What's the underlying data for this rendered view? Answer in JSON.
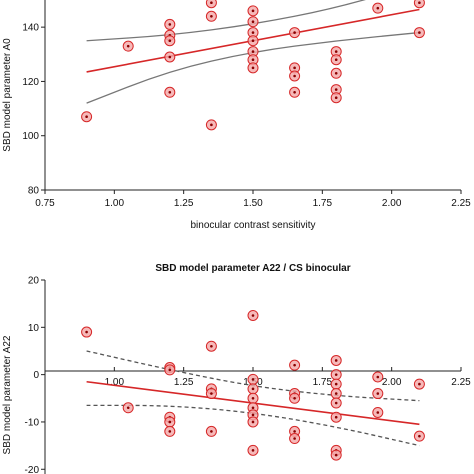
{
  "chart_data": [
    {
      "type": "scatter",
      "title": "",
      "xlabel": "binocular contrast sensitivity",
      "ylabel": "SBD model parameter A0",
      "xlim": [
        0.75,
        2.25
      ],
      "ylim": [
        80,
        150
      ],
      "xticks": [
        "0.75",
        "1.00",
        "1.25",
        "1.50",
        "1.75",
        "2.00",
        "2.25"
      ],
      "yticks": [
        "80",
        "100",
        "120",
        "140"
      ],
      "points": [
        {
          "x": 0.9,
          "y": 107
        },
        {
          "x": 1.05,
          "y": 133
        },
        {
          "x": 1.2,
          "y": 141
        },
        {
          "x": 1.2,
          "y": 137
        },
        {
          "x": 1.2,
          "y": 135
        },
        {
          "x": 1.2,
          "y": 129
        },
        {
          "x": 1.2,
          "y": 116
        },
        {
          "x": 1.35,
          "y": 149
        },
        {
          "x": 1.35,
          "y": 144
        },
        {
          "x": 1.35,
          "y": 104
        },
        {
          "x": 1.5,
          "y": 146
        },
        {
          "x": 1.5,
          "y": 142
        },
        {
          "x": 1.5,
          "y": 138
        },
        {
          "x": 1.5,
          "y": 135
        },
        {
          "x": 1.5,
          "y": 131
        },
        {
          "x": 1.5,
          "y": 128
        },
        {
          "x": 1.5,
          "y": 125
        },
        {
          "x": 1.65,
          "y": 138
        },
        {
          "x": 1.65,
          "y": 125
        },
        {
          "x": 1.65,
          "y": 122
        },
        {
          "x": 1.65,
          "y": 116
        },
        {
          "x": 1.8,
          "y": 131
        },
        {
          "x": 1.8,
          "y": 128
        },
        {
          "x": 1.8,
          "y": 123
        },
        {
          "x": 1.8,
          "y": 117
        },
        {
          "x": 1.8,
          "y": 114
        },
        {
          "x": 1.95,
          "y": 147
        },
        {
          "x": 2.1,
          "y": 149
        },
        {
          "x": 2.1,
          "y": 138
        }
      ],
      "fit": {
        "x": [
          0.9,
          2.1
        ],
        "y": [
          123.5,
          146.5
        ]
      },
      "ci_upper": {
        "x": [
          0.9,
          1.2,
          1.5,
          1.8,
          2.1
        ],
        "y": [
          135,
          137,
          141,
          147,
          156
        ]
      },
      "ci_lower": {
        "x": [
          0.9,
          1.2,
          1.5,
          1.8,
          2.1
        ],
        "y": [
          112,
          124,
          131,
          135,
          138
        ]
      },
      "colors": {
        "fit": "#d62728",
        "ci": "#777777",
        "marker_fill": "#f4a7a7",
        "marker_edge": "#d62728"
      }
    },
    {
      "type": "scatter",
      "title": "SBD model parameter A22 / CS binocular",
      "xlabel": "",
      "ylabel": "SBD model parameter A22",
      "xlim": [
        0.75,
        2.25
      ],
      "ylim": [
        -21,
        20
      ],
      "xticks": [
        "1.00",
        "1.25",
        "1.50",
        "1.75",
        "2.00",
        "2.25"
      ],
      "yticks": [
        "20",
        "10",
        "0",
        "-10",
        "-20"
      ],
      "points": [
        {
          "x": 0.9,
          "y": 9
        },
        {
          "x": 1.05,
          "y": -7
        },
        {
          "x": 1.2,
          "y": 1.5
        },
        {
          "x": 1.2,
          "y": 1
        },
        {
          "x": 1.2,
          "y": -9
        },
        {
          "x": 1.2,
          "y": -10
        },
        {
          "x": 1.2,
          "y": -12
        },
        {
          "x": 1.35,
          "y": 6
        },
        {
          "x": 1.35,
          "y": -3
        },
        {
          "x": 1.35,
          "y": -4
        },
        {
          "x": 1.35,
          "y": -12
        },
        {
          "x": 1.5,
          "y": 12.5
        },
        {
          "x": 1.5,
          "y": -1
        },
        {
          "x": 1.5,
          "y": -3
        },
        {
          "x": 1.5,
          "y": -5
        },
        {
          "x": 1.5,
          "y": -7
        },
        {
          "x": 1.5,
          "y": -8.5
        },
        {
          "x": 1.5,
          "y": -10
        },
        {
          "x": 1.5,
          "y": -16
        },
        {
          "x": 1.65,
          "y": 2
        },
        {
          "x": 1.65,
          "y": -4
        },
        {
          "x": 1.65,
          "y": -5
        },
        {
          "x": 1.65,
          "y": -12
        },
        {
          "x": 1.65,
          "y": -13.5
        },
        {
          "x": 1.8,
          "y": 3
        },
        {
          "x": 1.8,
          "y": 0
        },
        {
          "x": 1.8,
          "y": -2
        },
        {
          "x": 1.8,
          "y": -4
        },
        {
          "x": 1.8,
          "y": -6
        },
        {
          "x": 1.8,
          "y": -9
        },
        {
          "x": 1.8,
          "y": -16
        },
        {
          "x": 1.8,
          "y": -17
        },
        {
          "x": 1.95,
          "y": -0.5
        },
        {
          "x": 1.95,
          "y": -4
        },
        {
          "x": 1.95,
          "y": -8
        },
        {
          "x": 2.1,
          "y": -2
        },
        {
          "x": 2.1,
          "y": -13
        }
      ],
      "fit": {
        "x": [
          0.9,
          2.1
        ],
        "y": [
          -1.5,
          -10.5
        ]
      },
      "ci_upper": {
        "x": [
          0.9,
          1.2,
          1.5,
          1.8,
          2.1
        ],
        "y": [
          5,
          1,
          -2.5,
          -4.5,
          -5.5
        ]
      },
      "ci_lower": {
        "x": [
          0.9,
          1.2,
          1.5,
          1.8,
          2.1
        ],
        "y": [
          -6.5,
          -6.5,
          -8,
          -11,
          -15
        ]
      },
      "colors": {
        "fit": "#d62728",
        "ci": "#555555",
        "marker_fill": "#f4a7a7",
        "marker_edge": "#d62728"
      }
    }
  ]
}
